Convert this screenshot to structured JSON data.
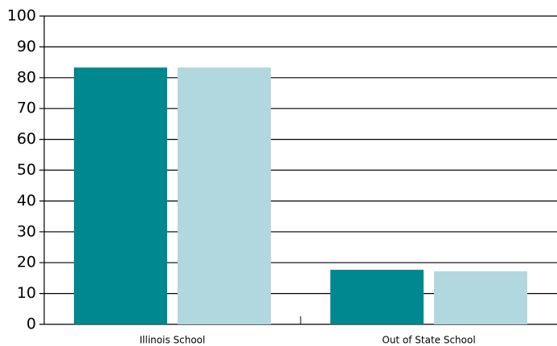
{
  "chart_data": {
    "type": "bar",
    "categories": [
      "Illinois School",
      "Out of State School"
    ],
    "series": [
      {
        "color": "#008891",
        "values": [
          83.3,
          17.7
        ]
      },
      {
        "color": "#b1d8de",
        "values": [
          83.3,
          17.2
        ]
      }
    ],
    "ylim": [
      0,
      100
    ],
    "yticks": [
      0,
      10,
      20,
      30,
      40,
      50,
      60,
      70,
      80,
      90,
      100
    ],
    "grid": true
  }
}
